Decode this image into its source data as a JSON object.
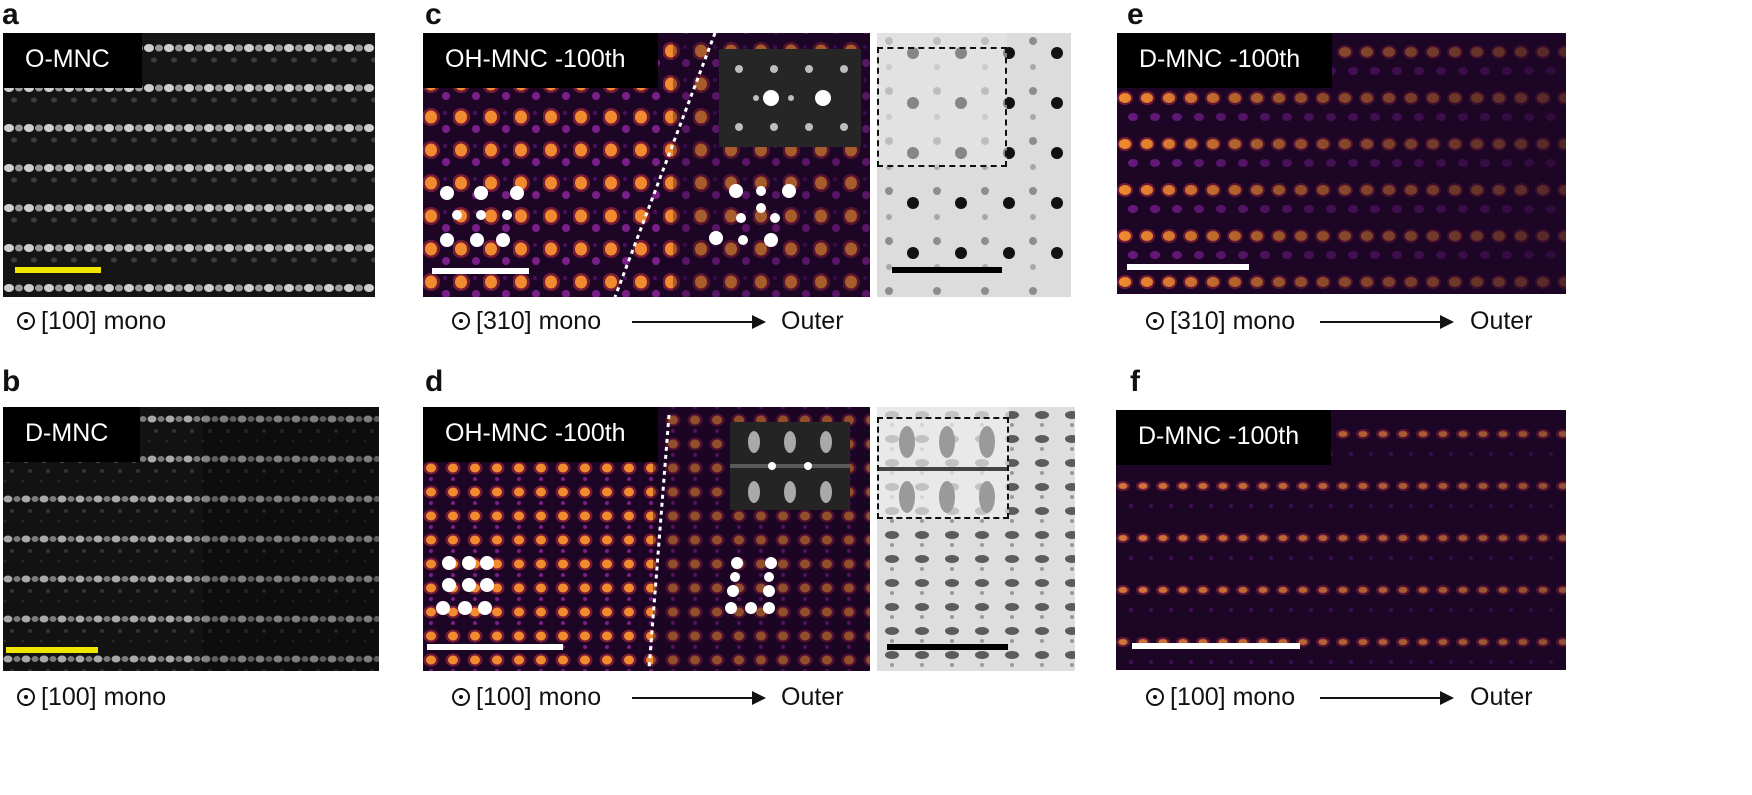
{
  "panels": {
    "a": {
      "letter": "a",
      "tag": "O-MNC",
      "axis": "[100]",
      "mode": "mono",
      "scalebar_color": "#f2e600"
    },
    "b": {
      "letter": "b",
      "tag": "D-MNC",
      "axis": "[100]",
      "mode": "mono",
      "scalebar_color": "#f2e600"
    },
    "c": {
      "letter": "c",
      "tag": "OH-MNC -100th",
      "axis": "[310]",
      "mode": "mono",
      "outer": "Outer",
      "scalebar_color": "#ffffff",
      "aux_scalebar_color": "#000000"
    },
    "d": {
      "letter": "d",
      "tag": "OH-MNC -100th",
      "axis": "[100]",
      "mode": "mono",
      "outer": "Outer",
      "scalebar_color": "#ffffff",
      "aux_scalebar_color": "#000000"
    },
    "e": {
      "letter": "e",
      "tag": "D-MNC -100th",
      "axis": "[310]",
      "mode": "mono",
      "outer": "Outer",
      "scalebar_color": "#ffffff"
    },
    "f": {
      "letter": "f",
      "tag": "D-MNC -100th",
      "axis": "[100]",
      "mode": "mono",
      "outer": "Outer",
      "scalebar_color": "#ffffff"
    }
  },
  "colors": {
    "hot_bright": "#ffd21a",
    "hot_mid": "#e0364a",
    "hot_dim": "#7a1f8a",
    "hot_bg": "#1d0526"
  }
}
